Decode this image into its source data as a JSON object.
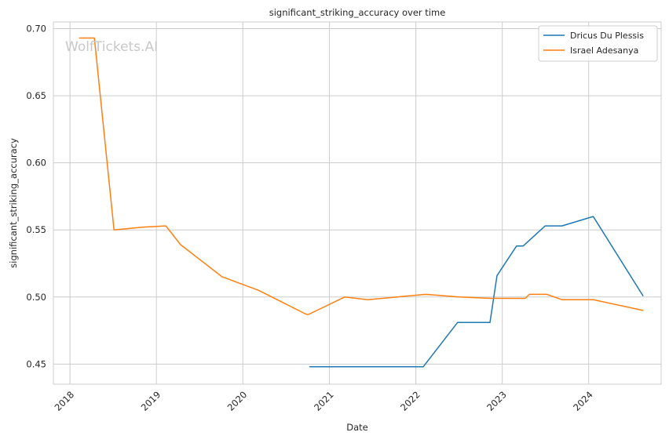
{
  "chart_data": {
    "type": "line",
    "title": "significant_striking_accuracy over time",
    "xlabel": "Date",
    "ylabel": "significant_striking_accuracy",
    "watermark": "WolfTickets.AI",
    "x_ticks": [
      "2018",
      "2019",
      "2020",
      "2021",
      "2022",
      "2023",
      "2024"
    ],
    "y_ticks": [
      "0.45",
      "0.50",
      "0.55",
      "0.60",
      "0.65",
      "0.70"
    ],
    "xlim": [
      "2017-10-23",
      "2024-11-02"
    ],
    "ylim": [
      0.435,
      0.705
    ],
    "grid": true,
    "legend_position": "top-right",
    "series": [
      {
        "name": "Dricus Du Plessis",
        "color": "#1f77b4",
        "points": [
          {
            "x": "2020-10-10",
            "y": 0.448
          },
          {
            "x": "2021-03-01",
            "y": 0.448
          },
          {
            "x": "2021-09-01",
            "y": 0.448
          },
          {
            "x": "2022-02-01",
            "y": 0.448
          },
          {
            "x": "2022-06-26",
            "y": 0.481
          },
          {
            "x": "2022-11-10",
            "y": 0.481
          },
          {
            "x": "2022-12-10",
            "y": 0.516
          },
          {
            "x": "2023-03-02",
            "y": 0.538
          },
          {
            "x": "2023-03-30",
            "y": 0.538
          },
          {
            "x": "2023-07-01",
            "y": 0.553
          },
          {
            "x": "2023-09-10",
            "y": 0.553
          },
          {
            "x": "2024-01-20",
            "y": 0.56
          },
          {
            "x": "2024-08-17",
            "y": 0.501
          }
        ]
      },
      {
        "name": "Israel Adesanya",
        "color": "#ff7f0e",
        "points": [
          {
            "x": "2018-02-10",
            "y": 0.693
          },
          {
            "x": "2018-04-14",
            "y": 0.693
          },
          {
            "x": "2018-07-06",
            "y": 0.55
          },
          {
            "x": "2018-11-03",
            "y": 0.552
          },
          {
            "x": "2019-02-10",
            "y": 0.553
          },
          {
            "x": "2019-04-13",
            "y": 0.539
          },
          {
            "x": "2019-10-06",
            "y": 0.515
          },
          {
            "x": "2020-03-07",
            "y": 0.505
          },
          {
            "x": "2020-09-26",
            "y": 0.487
          },
          {
            "x": "2020-10-05",
            "y": 0.487
          },
          {
            "x": "2021-03-06",
            "y": 0.5
          },
          {
            "x": "2021-06-12",
            "y": 0.498
          },
          {
            "x": "2022-02-12",
            "y": 0.502
          },
          {
            "x": "2022-07-02",
            "y": 0.5
          },
          {
            "x": "2022-11-12",
            "y": 0.499
          },
          {
            "x": "2023-04-08",
            "y": 0.499
          },
          {
            "x": "2023-04-25",
            "y": 0.502
          },
          {
            "x": "2023-07-08",
            "y": 0.502
          },
          {
            "x": "2023-09-10",
            "y": 0.498
          },
          {
            "x": "2024-01-20",
            "y": 0.498
          },
          {
            "x": "2024-08-17",
            "y": 0.49
          }
        ]
      }
    ]
  }
}
